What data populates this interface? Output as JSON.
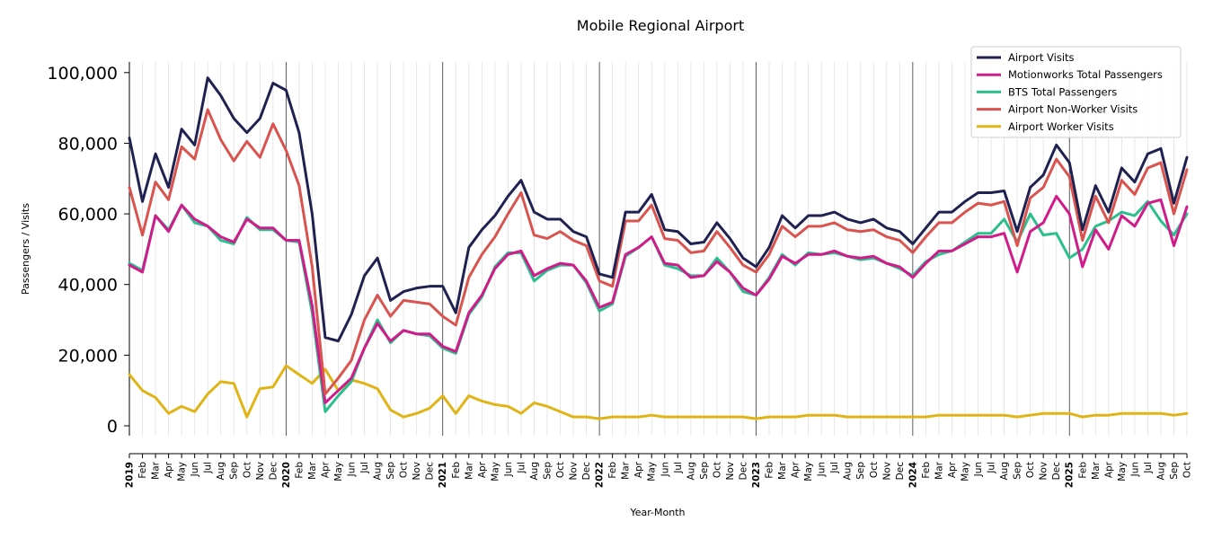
{
  "chart_data": {
    "type": "line",
    "title": "Mobile Regional Airport",
    "xlabel": "Year-Month",
    "ylabel": "Passengers / Visits",
    "ylim": [
      -2800,
      103000
    ],
    "yticks": [
      0,
      20000,
      40000,
      60000,
      80000,
      100000
    ],
    "ytick_labels": [
      "0",
      "20,000",
      "40,000",
      "60,000",
      "80,000",
      "100,000"
    ],
    "grid": "vertical lines at each month; darker lines at each January",
    "legend_position": "top-right",
    "x": [
      "2019",
      "Feb",
      "Mar",
      "Apr",
      "May",
      "Jun",
      "Jul",
      "Aug",
      "Sep",
      "Oct",
      "Nov",
      "Dec",
      "2020",
      "Feb",
      "Mar",
      "Apr",
      "May",
      "Jun",
      "Jul",
      "Aug",
      "Sep",
      "Oct",
      "Nov",
      "Dec",
      "2021",
      "Feb",
      "Mar",
      "Apr",
      "May",
      "Jun",
      "Jul",
      "Aug",
      "Sep",
      "Oct",
      "Nov",
      "Dec",
      "2022",
      "Feb",
      "Mar",
      "Apr",
      "May",
      "Jun",
      "Jul",
      "Aug",
      "Sep",
      "Oct",
      "Nov",
      "Dec",
      "2023",
      "Feb",
      "Mar",
      "Apr",
      "May",
      "Jun",
      "Jul",
      "Aug",
      "Sep",
      "Oct",
      "Nov",
      "Dec",
      "2024",
      "Feb",
      "Mar",
      "Apr",
      "May",
      "Jun",
      "Jul",
      "Aug",
      "Sep",
      "Oct",
      "Nov",
      "Dec",
      "2025",
      "Feb",
      "Mar",
      "Apr",
      "May",
      "Jun",
      "Jul",
      "Aug",
      "Sep",
      "Oct"
    ],
    "series": [
      {
        "name": "Airport Visits",
        "color": "#1f2151",
        "values": [
          81500,
          63500,
          77000,
          67500,
          84000,
          79500,
          98500,
          93500,
          87000,
          83000,
          87000,
          97000,
          95000,
          83000,
          60000,
          25000,
          24000,
          31500,
          42500,
          47500,
          35500,
          38000,
          39000,
          39500,
          39500,
          32000,
          50500,
          55500,
          59500,
          65000,
          69500,
          60500,
          58500,
          58500,
          55000,
          53500,
          43000,
          42000,
          60500,
          60500,
          65500,
          55500,
          55000,
          51500,
          52000,
          57500,
          53000,
          47500,
          45000,
          50500,
          59500,
          56000,
          59500,
          59500,
          60500,
          58500,
          57500,
          58500,
          56000,
          55000,
          51500,
          56000,
          60500,
          60500,
          63500,
          66000,
          66000,
          66500,
          55000,
          67500,
          71000,
          79500,
          74500,
          55500,
          68000,
          60500,
          73000,
          69000,
          77000,
          78500,
          63000,
          76000
        ]
      },
      {
        "name": "Motionworks Total Passengers",
        "color": "#d01c8b",
        "values": [
          45500,
          43500,
          59500,
          55000,
          62500,
          58500,
          56500,
          53500,
          52000,
          58500,
          56000,
          56000,
          52500,
          52500,
          34000,
          6500,
          10000,
          13500,
          22000,
          29000,
          24000,
          27000,
          26000,
          26000,
          22500,
          21000,
          32000,
          37000,
          44500,
          48500,
          49500,
          42500,
          44500,
          46000,
          45500,
          41000,
          33500,
          35000,
          48500,
          50500,
          53500,
          46000,
          45500,
          42000,
          42500,
          46500,
          43500,
          39000,
          37000,
          41500,
          48000,
          46000,
          48500,
          48500,
          49500,
          48000,
          47500,
          48000,
          46000,
          45000,
          42000,
          46000,
          49500,
          49500,
          51500,
          53500,
          53500,
          54500,
          43500,
          55000,
          57500,
          65000,
          60000,
          45000,
          55500,
          50000,
          59500,
          56500,
          63000,
          64000,
          51000,
          62000
        ]
      },
      {
        "name": "BTS Total Passengers",
        "color": "#2abf8c",
        "values": [
          46000,
          44000,
          59500,
          55500,
          62500,
          57500,
          56500,
          52500,
          51500,
          59000,
          55500,
          55500,
          52500,
          52000,
          32000,
          4000,
          8500,
          12500,
          22000,
          30000,
          23500,
          27000,
          26000,
          25500,
          22000,
          20500,
          31500,
          36500,
          45000,
          49000,
          49000,
          41000,
          44000,
          45500,
          45500,
          40500,
          32500,
          34500,
          48000,
          50500,
          53500,
          45500,
          44500,
          42500,
          42500,
          47500,
          43500,
          38000,
          37000,
          42000,
          48500,
          45500,
          49000,
          48500,
          49000,
          48000,
          47000,
          47500,
          46000,
          44500,
          42500,
          46500,
          48500,
          49500,
          52000,
          54500,
          54500,
          58500,
          52000,
          60000,
          54000,
          54500,
          47500,
          50000,
          56500,
          58000,
          60500,
          59500,
          63500,
          58000,
          54000,
          60000
        ]
      },
      {
        "name": "Airport Non-Worker Visits",
        "color": "#d9534f",
        "values": [
          67500,
          54000,
          69000,
          64000,
          79000,
          75500,
          89500,
          81000,
          75000,
          80500,
          76000,
          85500,
          78000,
          68000,
          45000,
          9000,
          13500,
          18500,
          30000,
          37000,
          31000,
          35500,
          35000,
          34500,
          31000,
          28500,
          42000,
          48500,
          53500,
          60000,
          66000,
          54000,
          53000,
          55000,
          52500,
          51000,
          41000,
          39500,
          58000,
          58000,
          62500,
          53000,
          52500,
          49000,
          49500,
          55000,
          50500,
          45500,
          43500,
          48500,
          56500,
          53500,
          56500,
          56500,
          57500,
          55500,
          55000,
          55500,
          53500,
          52500,
          49000,
          53500,
          57500,
          57500,
          60500,
          63000,
          62500,
          63500,
          51000,
          64500,
          67500,
          75500,
          70500,
          52500,
          65000,
          57500,
          69500,
          65500,
          73000,
          74500,
          60000,
          72500
        ]
      },
      {
        "name": "Airport Worker Visits",
        "color": "#e0b416",
        "values": [
          14500,
          10000,
          8000,
          3500,
          5500,
          4000,
          9000,
          12500,
          12000,
          2500,
          10500,
          11000,
          17000,
          14500,
          12000,
          16000,
          10000,
          13000,
          12000,
          10500,
          4500,
          2500,
          3500,
          5000,
          8500,
          3500,
          8500,
          7000,
          6000,
          5500,
          3500,
          6500,
          5500,
          4000,
          2500,
          2500,
          2000,
          2500,
          2500,
          2500,
          3000,
          2500,
          2500,
          2500,
          2500,
          2500,
          2500,
          2500,
          2000,
          2500,
          2500,
          2500,
          3000,
          3000,
          3000,
          2500,
          2500,
          2500,
          2500,
          2500,
          2500,
          2500,
          3000,
          3000,
          3000,
          3000,
          3000,
          3000,
          2500,
          3000,
          3500,
          3500,
          3500,
          2500,
          3000,
          3000,
          3500,
          3500,
          3500,
          3500,
          3000,
          3500
        ]
      }
    ]
  }
}
